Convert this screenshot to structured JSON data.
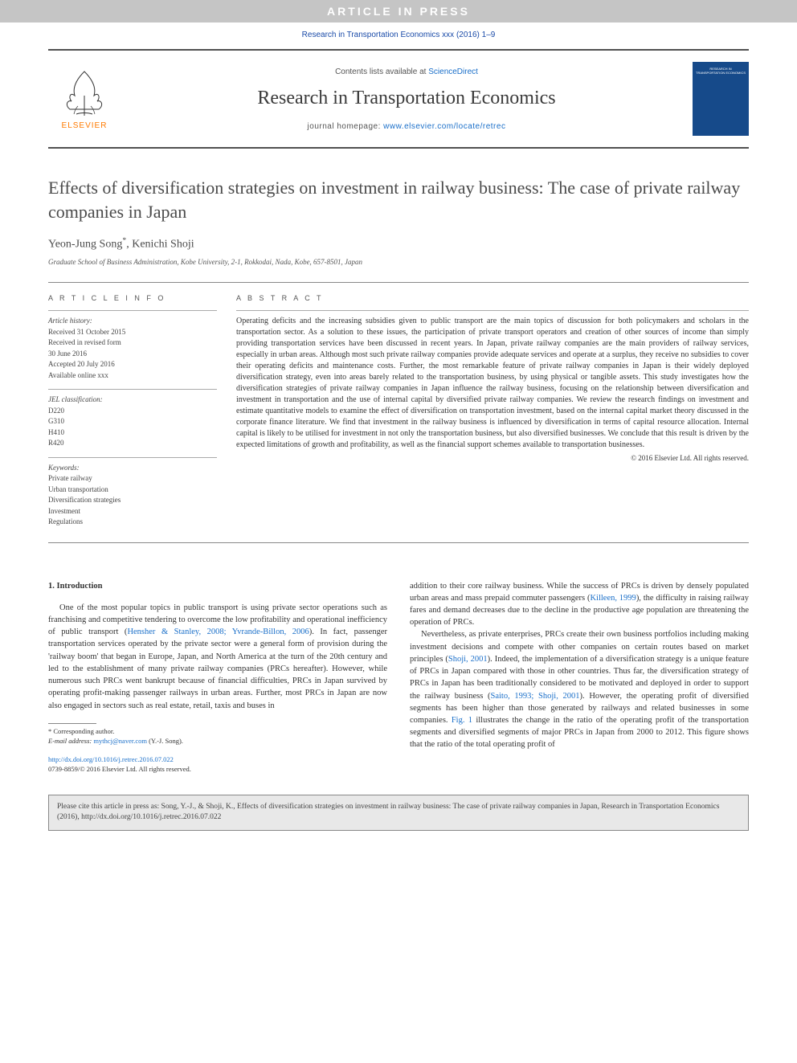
{
  "banner": "ARTICLE IN PRESS",
  "journal_ref": "Research in Transportation Economics xxx (2016) 1–9",
  "header": {
    "contents_prefix": "Contents lists available at ",
    "contents_link": "ScienceDirect",
    "journal_title": "Research in Transportation Economics",
    "homepage_prefix": "journal homepage: ",
    "homepage_link": "www.elsevier.com/locate/retrec",
    "elsevier_label": "ELSEVIER",
    "cover_label": "RESEARCH IN TRANSPORTATION ECONOMICS"
  },
  "title": "Effects of diversification strategies on investment in railway business: The case of private railway companies in Japan",
  "authors_html": "Yeon-Jung Song<span class='sup'>*</span>, Kenichi Shoji",
  "affiliation": "Graduate School of Business Administration, Kobe University, 2-1, Rokkodai, Nada, Kobe, 657-8501, Japan",
  "info": {
    "heading": "A R T I C L E  I N F O",
    "history_label": "Article history:",
    "history": [
      "Received 31 October 2015",
      "Received in revised form",
      "30 June 2016",
      "Accepted 20 July 2016",
      "Available online xxx"
    ],
    "jel_label": "JEL classification:",
    "jel": [
      "D220",
      "G310",
      "H410",
      "R420"
    ],
    "keywords_label": "Keywords:",
    "keywords": [
      "Private railway",
      "Urban transportation",
      "Diversification strategies",
      "Investment",
      "Regulations"
    ]
  },
  "abstract": {
    "heading": "A B S T R A C T",
    "text": "Operating deficits and the increasing subsidies given to public transport are the main topics of discussion for both policymakers and scholars in the transportation sector. As a solution to these issues, the participation of private transport operators and creation of other sources of income than simply providing transportation services have been discussed in recent years. In Japan, private railway companies are the main providers of railway services, especially in urban areas. Although most such private railway companies provide adequate services and operate at a surplus, they receive no subsidies to cover their operating deficits and maintenance costs. Further, the most remarkable feature of private railway companies in Japan is their widely deployed diversification strategy, even into areas barely related to the transportation business, by using physical or tangible assets. This study investigates how the diversification strategies of private railway companies in Japan influence the railway business, focusing on the relationship between diversification and investment in transportation and the use of internal capital by diversified private railway companies. We review the research findings on investment and estimate quantitative models to examine the effect of diversification on transportation investment, based on the internal capital market theory discussed in the corporate finance literature. We find that investment in the railway business is influenced by diversification in terms of capital resource allocation. Internal capital is likely to be utilised for investment in not only the transportation business, but also diversified businesses. We conclude that this result is driven by the expected limitations of growth and profitability, as well as the financial support schemes available to transportation businesses.",
    "copyright": "© 2016 Elsevier Ltd. All rights reserved."
  },
  "section1": {
    "heading": "1. Introduction",
    "col1_p1_pre": "One of the most popular topics in public transport is using private sector operations such as franchising and competitive tendering to overcome the low profitability and operational inefficiency of public transport (",
    "col1_p1_link": "Hensher & Stanley, 2008; Yvrande-Billon, 2006",
    "col1_p1_post": "). In fact, passenger transportation services operated by the private sector were a general form of provision during the 'railway boom' that began in Europe, Japan, and North America at the turn of the 20th century and led to the establishment of many private railway companies (PRCs hereafter). However, while numerous such PRCs went bankrupt because of financial difficulties, PRCs in Japan survived by operating profit-making passenger railways in urban areas. Further, most PRCs in Japan are now also engaged in sectors such as real estate, retail, taxis and buses in",
    "col2_p1_pre": "addition to their core railway business. While the success of PRCs is driven by densely populated urban areas and mass prepaid commuter passengers (",
    "col2_p1_link": "Killeen, 1999",
    "col2_p1_post": "), the difficulty in raising railway fares and demand decreases due to the decline in the productive age population are threatening the operation of PRCs.",
    "col2_p2_pre": "Nevertheless, as private enterprises, PRCs create their own business portfolios including making investment decisions and compete with other companies on certain routes based on market principles (",
    "col2_p2_link1": "Shoji, 2001",
    "col2_p2_mid1": "). Indeed, the implementation of a diversification strategy is a unique feature of PRCs in Japan compared with those in other countries. Thus far, the diversification strategy of PRCs in Japan has been traditionally considered to be motivated and deployed in order to support the railway business (",
    "col2_p2_link2": "Saito, 1993; Shoji, 2001",
    "col2_p2_mid2": "). However, the operating profit of diversified segments has been higher than those generated by railways and related businesses in some companies. ",
    "col2_p2_link3": "Fig. 1",
    "col2_p2_post": " illustrates the change in the ratio of the operating profit of the transportation segments and diversified segments of major PRCs in Japan from 2000 to 2012. This figure shows that the ratio of the total operating profit of"
  },
  "footnotes": {
    "corr": "* Corresponding author.",
    "email_label": "E-mail address: ",
    "email": "mythcj@naver.com",
    "email_suffix": " (Y.-J. Song).",
    "doi_link": "http://dx.doi.org/10.1016/j.retrec.2016.07.022",
    "issn": "0739-8859/© 2016 Elsevier Ltd. All rights reserved."
  },
  "cite_box": "Please cite this article in press as: Song, Y.-J., & Shoji, K., Effects of diversification strategies on investment in railway business: The case of private railway companies in Japan, Research in Transportation Economics (2016), http://dx.doi.org/10.1016/j.retrec.2016.07.022",
  "colors": {
    "banner_bg": "#c5c5c5",
    "banner_text": "#ffffff",
    "link": "#1a6fc9",
    "elsevier_orange": "#ff7a00",
    "cover_bg": "#164a8a",
    "citebox_bg": "#e8e8e8",
    "rule": "#888888"
  }
}
